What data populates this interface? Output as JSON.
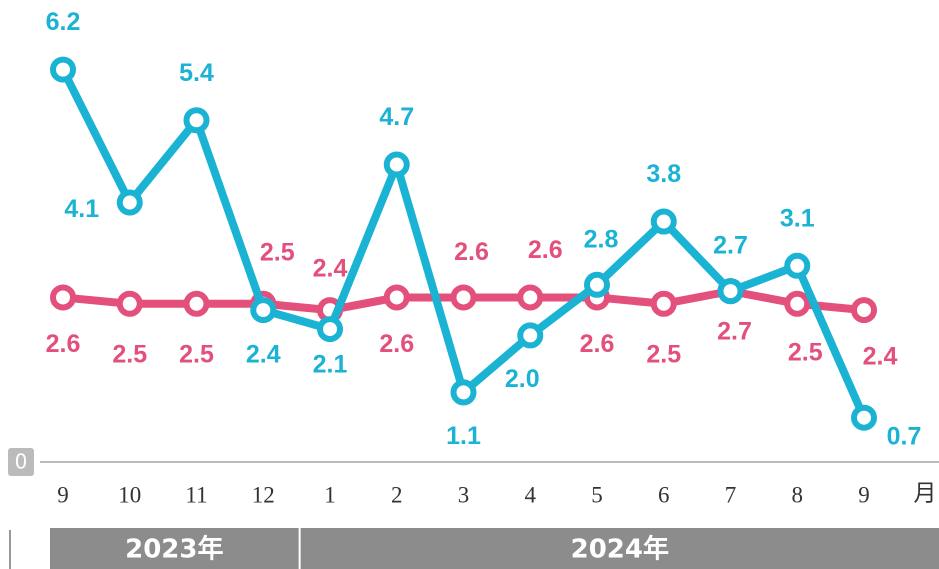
{
  "chart_data": {
    "type": "line",
    "categories": [
      "9",
      "10",
      "11",
      "12",
      "1",
      "2",
      "3",
      "4",
      "5",
      "6",
      "7",
      "8",
      "9"
    ],
    "x_unit": "月",
    "groups": [
      {
        "label": "2023年",
        "span": [
          0,
          3
        ]
      },
      {
        "label": "2024年",
        "span": [
          4,
          12
        ]
      }
    ],
    "series": [
      {
        "color": "#1bb3d4",
        "values": [
          6.2,
          4.1,
          5.4,
          2.4,
          2.1,
          4.7,
          1.1,
          2.0,
          2.8,
          3.8,
          2.7,
          3.1,
          0.7
        ],
        "value_labels": [
          "6.2",
          "4.1",
          "5.4",
          "2.4",
          "2.1",
          "4.7",
          "1.1",
          "2.0",
          "2.8",
          "3.8",
          "2.7",
          "3.1",
          "0.7"
        ]
      },
      {
        "color": "#e2507b",
        "values": [
          2.6,
          2.5,
          2.5,
          2.5,
          2.4,
          2.6,
          2.6,
          2.6,
          2.6,
          2.5,
          2.7,
          2.5,
          2.4
        ],
        "value_labels": [
          "2.6",
          "2.5",
          "2.5",
          "2.5",
          "2.4",
          "2.6",
          "2.6",
          "2.6",
          "2.6",
          "2.5",
          "2.7",
          "2.5",
          "2.4"
        ]
      }
    ],
    "ylim": [
      0,
      7.3
    ],
    "yticks": [
      0
    ]
  }
}
